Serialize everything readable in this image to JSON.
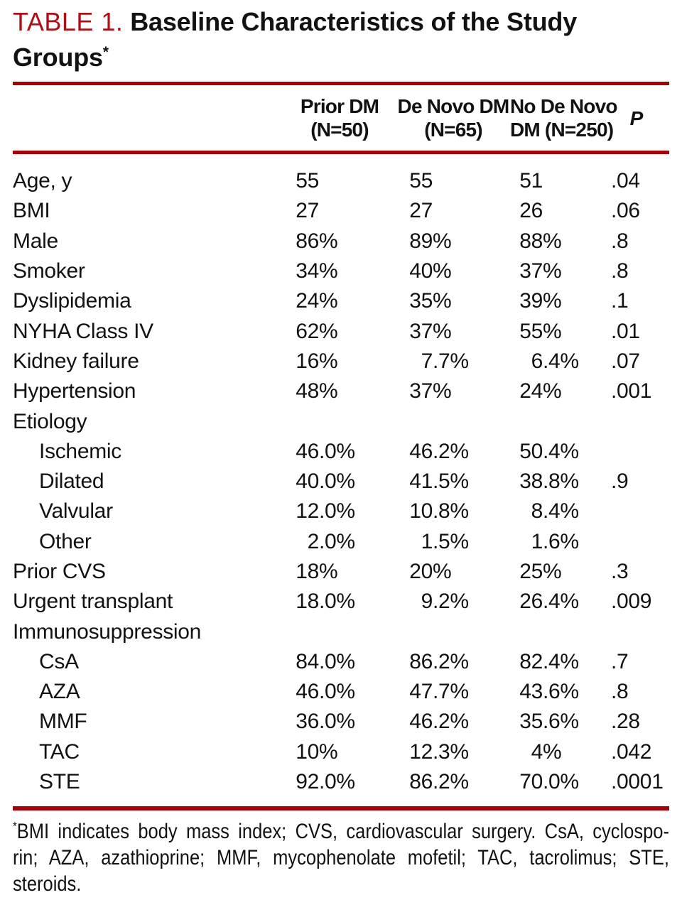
{
  "title": {
    "label": "TABLE 1.",
    "line1": "Baseline Characteristics of the Study",
    "line2": "Groups",
    "footnote_marker": "*"
  },
  "table": {
    "columns": [
      {
        "line1": "",
        "line2": ""
      },
      {
        "line1": "Prior DM",
        "line2": "(N=50)"
      },
      {
        "line1": "De Novo DM",
        "line2": "(N=65)"
      },
      {
        "line1": "No De Novo",
        "line2": "DM (N=250)"
      },
      {
        "line1": "P",
        "line2": ""
      }
    ],
    "rows": [
      {
        "label": "Age, y",
        "indent": false,
        "section": false,
        "values": [
          "55",
          "55",
          "51",
          ".04"
        ]
      },
      {
        "label": "BMI",
        "indent": false,
        "section": false,
        "values": [
          "27",
          "27",
          "26",
          ".06"
        ]
      },
      {
        "label": "Male",
        "indent": false,
        "section": false,
        "values": [
          "86%",
          "89%",
          "88%",
          ".8"
        ]
      },
      {
        "label": "Smoker",
        "indent": false,
        "section": false,
        "values": [
          "34%",
          "40%",
          "37%",
          ".8"
        ]
      },
      {
        "label": "Dyslipidemia",
        "indent": false,
        "section": false,
        "values": [
          "24%",
          "35%",
          "39%",
          ".1"
        ]
      },
      {
        "label": "NYHA Class IV",
        "indent": false,
        "section": false,
        "values": [
          "62%",
          "37%",
          "55%",
          ".01"
        ]
      },
      {
        "label": "Kidney failure",
        "indent": false,
        "section": false,
        "values": [
          "16%",
          "7.7%",
          "6.4%",
          ".07"
        ]
      },
      {
        "label": "Hypertension",
        "indent": false,
        "section": false,
        "values": [
          "48%",
          "37%",
          "24%",
          ".001"
        ]
      },
      {
        "label": "Etiology",
        "indent": false,
        "section": true,
        "values": [
          "",
          "",
          "",
          ""
        ]
      },
      {
        "label": "Ischemic",
        "indent": true,
        "section": false,
        "values": [
          "46.0%",
          "46.2%",
          "50.4%",
          ""
        ]
      },
      {
        "label": "Dilated",
        "indent": true,
        "section": false,
        "values": [
          "40.0%",
          "41.5%",
          "38.8%",
          ".9"
        ]
      },
      {
        "label": "Valvular",
        "indent": true,
        "section": false,
        "values": [
          "12.0%",
          "10.8%",
          "8.4%",
          ""
        ]
      },
      {
        "label": "Other",
        "indent": true,
        "section": false,
        "values": [
          "2.0%",
          "1.5%",
          "1.6%",
          ""
        ]
      },
      {
        "label": "Prior CVS",
        "indent": false,
        "section": false,
        "values": [
          "18%",
          "20%",
          "25%",
          ".3"
        ]
      },
      {
        "label": "Urgent transplant",
        "indent": false,
        "section": false,
        "values": [
          "18.0%",
          "9.2%",
          "26.4%",
          ".009"
        ]
      },
      {
        "label": "Immunosuppression",
        "indent": false,
        "section": true,
        "values": [
          "",
          "",
          "",
          ""
        ]
      },
      {
        "label": "CsA",
        "indent": true,
        "section": false,
        "values": [
          "84.0%",
          "86.2%",
          "82.4%",
          ".7"
        ]
      },
      {
        "label": "AZA",
        "indent": true,
        "section": false,
        "values": [
          "46.0%",
          "47.7%",
          "43.6%",
          ".8"
        ]
      },
      {
        "label": "MMF",
        "indent": true,
        "section": false,
        "values": [
          "36.0%",
          "46.2%",
          "35.6%",
          ".28"
        ]
      },
      {
        "label": "TAC",
        "indent": true,
        "section": false,
        "values": [
          "10%",
          "12.3%",
          "4%",
          ".042"
        ]
      },
      {
        "label": "STE",
        "indent": true,
        "section": false,
        "values": [
          "92.0%",
          "86.2%",
          "70.0%",
          ".0001"
        ]
      }
    ]
  },
  "footnote": {
    "marker": "*",
    "lines": [
      "BMI indicates body mass index; CVS, cardiovascular surgery. CsA, cyclospo-",
      "rin; AZA, azathioprine; MMF, mycophenolate mofetil; TAC, tacrolimus; STE,",
      "steroids."
    ]
  },
  "colors": {
    "rule": "#a80009",
    "title_accent": "#ae0f14",
    "text": "#121212"
  }
}
